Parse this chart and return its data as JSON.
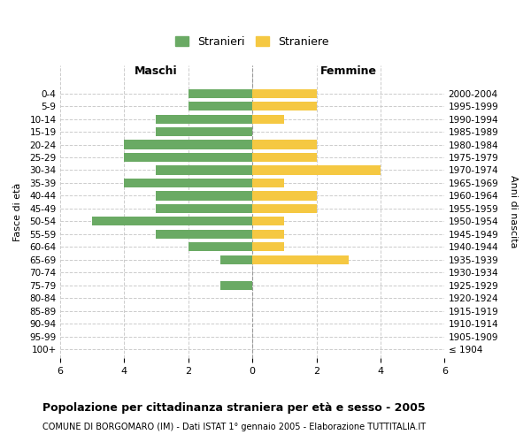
{
  "age_groups": [
    "100+",
    "95-99",
    "90-94",
    "85-89",
    "80-84",
    "75-79",
    "70-74",
    "65-69",
    "60-64",
    "55-59",
    "50-54",
    "45-49",
    "40-44",
    "35-39",
    "30-34",
    "25-29",
    "20-24",
    "15-19",
    "10-14",
    "5-9",
    "0-4"
  ],
  "birth_years": [
    "≤ 1904",
    "1905-1909",
    "1910-1914",
    "1915-1919",
    "1920-1924",
    "1925-1929",
    "1930-1934",
    "1935-1939",
    "1940-1944",
    "1945-1949",
    "1950-1954",
    "1955-1959",
    "1960-1964",
    "1965-1969",
    "1970-1974",
    "1975-1979",
    "1980-1984",
    "1985-1989",
    "1990-1994",
    "1995-1999",
    "2000-2004"
  ],
  "maschi": [
    0,
    0,
    0,
    0,
    0,
    1,
    0,
    1,
    2,
    3,
    5,
    3,
    3,
    4,
    3,
    4,
    4,
    3,
    3,
    2,
    2
  ],
  "femmine": [
    0,
    0,
    0,
    0,
    0,
    0,
    0,
    3,
    1,
    1,
    1,
    2,
    2,
    1,
    4,
    2,
    2,
    0,
    1,
    2,
    2
  ],
  "maschi_color": "#6aaa64",
  "femmine_color": "#f5c842",
  "title": "Popolazione per cittadinanza straniera per età e sesso - 2005",
  "subtitle": "COMUNE DI BORGOMARO (IM) - Dati ISTAT 1° gennaio 2005 - Elaborazione TUTTITALIA.IT",
  "left_label": "Maschi",
  "right_label": "Femmine",
  "y_left_label": "Fasce di età",
  "y_right_label": "Anni di nascita",
  "legend_maschi": "Stranieri",
  "legend_femmine": "Straniere",
  "xlim": 6,
  "background_color": "#ffffff",
  "grid_color": "#cccccc"
}
